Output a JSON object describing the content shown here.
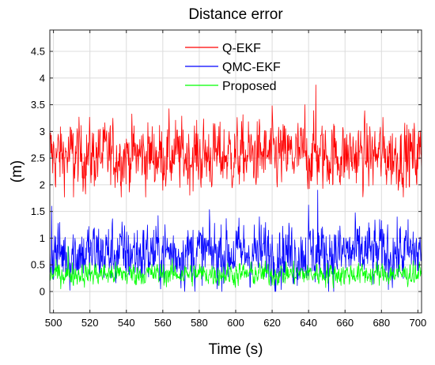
{
  "chart_data": {
    "type": "line",
    "title": "Distance error",
    "xlabel": "Time (s)",
    "ylabel": "(m)",
    "xlim": [
      498,
      702
    ],
    "ylim": [
      -0.4,
      4.9
    ],
    "xticks": [
      500,
      520,
      540,
      560,
      580,
      600,
      620,
      640,
      660,
      680,
      700
    ],
    "xtick_labels": [
      "500",
      "520",
      "540",
      "560",
      "580",
      "600",
      "620",
      "640",
      "660",
      "680",
      "700"
    ],
    "yticks": [
      0,
      0.5,
      1,
      1.5,
      2,
      2.5,
      3,
      3.5,
      4,
      4.5
    ],
    "ytick_labels": [
      "0",
      "0.5",
      "1",
      "1.5",
      "2",
      "2.5",
      "3",
      "3.5",
      "4",
      "4.5"
    ],
    "grid": true,
    "legend_position": "top-center",
    "sampling": {
      "x_start": 498,
      "x_end": 702,
      "step": 0.2
    },
    "series": [
      {
        "name": "Q-EKF",
        "color": "#ff0000",
        "mean": 2.55,
        "spread": 0.3,
        "approx_range": [
          1.77,
          3.87
        ],
        "peaks": [
          {
            "x": 644,
            "y": 3.87
          },
          {
            "x": 620,
            "y": 3.48
          },
          {
            "x": 638,
            "y": 3.5
          }
        ],
        "troughs": [
          {
            "x": 511,
            "y": 1.77
          }
        ]
      },
      {
        "name": "QMC-EKF",
        "color": "#0000ff",
        "mean": 0.72,
        "spread": 0.28,
        "approx_range": [
          0.0,
          1.9
        ],
        "peaks": [
          {
            "x": 645,
            "y": 1.9
          },
          {
            "x": 499,
            "y": 1.6
          },
          {
            "x": 640,
            "y": 1.62
          }
        ],
        "troughs": []
      },
      {
        "name": "Proposed",
        "color": "#00ff00",
        "mean": 0.33,
        "spread": 0.1,
        "approx_range": [
          0.05,
          0.85
        ],
        "peaks": [
          {
            "x": 508,
            "y": 0.85
          }
        ],
        "troughs": []
      }
    ]
  }
}
